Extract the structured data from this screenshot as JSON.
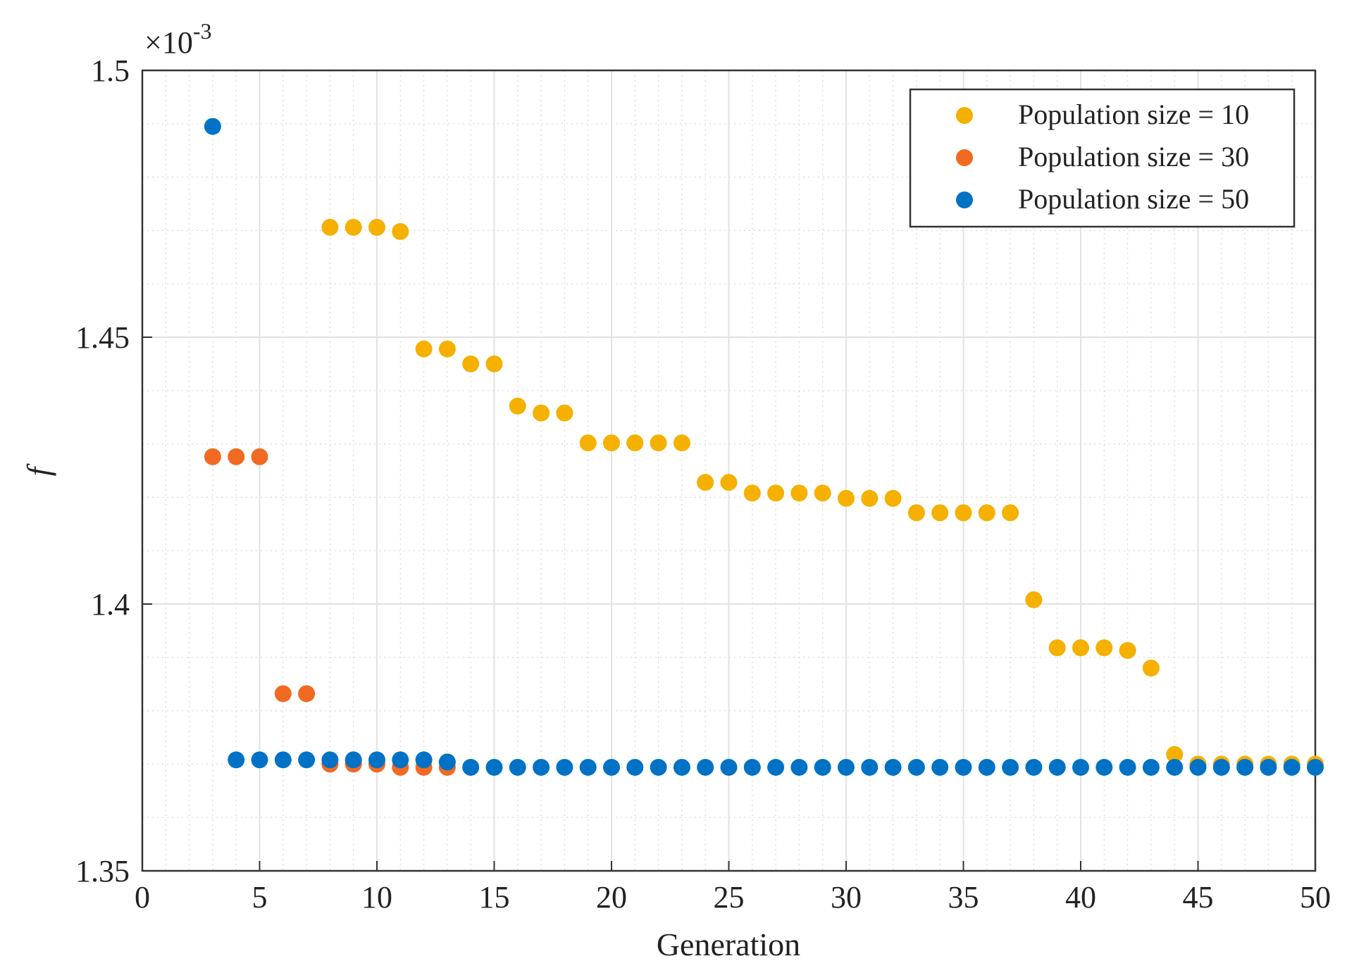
{
  "chart_data": {
    "type": "scatter",
    "title": "",
    "xlabel": "Generation",
    "ylabel": "f",
    "exponent_prefix": "×10",
    "exponent_power": "-3",
    "xlim": [
      0,
      50
    ],
    "ylim": [
      1.35,
      1.5
    ],
    "x_ticks": [
      0,
      5,
      10,
      15,
      20,
      25,
      30,
      35,
      40,
      45,
      50
    ],
    "x_tick_labels": [
      "0",
      "5",
      "10",
      "15",
      "20",
      "25",
      "30",
      "35",
      "40",
      "45",
      "50"
    ],
    "y_ticks": [
      1.35,
      1.4,
      1.45,
      1.5
    ],
    "y_tick_labels": [
      "1.35",
      "1.4",
      "1.45",
      "1.5"
    ],
    "grid": true,
    "minor_grid": true,
    "legend_position": "top-right",
    "series": [
      {
        "name": "Population size = 10",
        "color": "#F5B000",
        "x": [
          8,
          9,
          10,
          11,
          12,
          13,
          14,
          15,
          16,
          17,
          18,
          19,
          20,
          21,
          22,
          23,
          24,
          25,
          26,
          27,
          28,
          29,
          30,
          31,
          32,
          33,
          34,
          35,
          36,
          37,
          38,
          39,
          40,
          41,
          42,
          43,
          44,
          45,
          46,
          47,
          48,
          49,
          50
        ],
        "y": [
          1.4706,
          1.4706,
          1.4706,
          1.4698,
          1.4478,
          1.4478,
          1.445,
          1.445,
          1.4371,
          1.4358,
          1.4358,
          1.4302,
          1.4302,
          1.4302,
          1.4302,
          1.4302,
          1.4228,
          1.4228,
          1.4208,
          1.4208,
          1.4208,
          1.4208,
          1.4198,
          1.4198,
          1.4198,
          1.4171,
          1.4171,
          1.4171,
          1.4171,
          1.4171,
          1.4008,
          1.3918,
          1.3918,
          1.3918,
          1.3913,
          1.388,
          1.3718,
          1.37,
          1.37,
          1.37,
          1.37,
          1.37,
          1.37
        ]
      },
      {
        "name": "Population size = 30",
        "color": "#F06A22",
        "x": [
          3,
          4,
          5,
          6,
          7,
          8,
          9,
          10,
          11,
          12,
          13
        ],
        "y": [
          1.4276,
          1.4276,
          1.4276,
          1.3832,
          1.3832,
          1.37,
          1.37,
          1.37,
          1.3694,
          1.3694,
          1.3694
        ]
      },
      {
        "name": "Population size = 50",
        "color": "#0072C6",
        "x": [
          3,
          4,
          5,
          6,
          7,
          8,
          9,
          10,
          11,
          12,
          13,
          14,
          15,
          16,
          17,
          18,
          19,
          20,
          21,
          22,
          23,
          24,
          25,
          26,
          27,
          28,
          29,
          30,
          31,
          32,
          33,
          34,
          35,
          36,
          37,
          38,
          39,
          40,
          41,
          42,
          43,
          44,
          45,
          46,
          47,
          48,
          49,
          50
        ],
        "y": [
          1.4895,
          1.3708,
          1.3708,
          1.3708,
          1.3708,
          1.3708,
          1.3708,
          1.3708,
          1.3708,
          1.3708,
          1.3704,
          1.3694,
          1.3694,
          1.3694,
          1.3694,
          1.3694,
          1.3694,
          1.3694,
          1.3694,
          1.3694,
          1.3694,
          1.3694,
          1.3694,
          1.3694,
          1.3694,
          1.3694,
          1.3694,
          1.3694,
          1.3694,
          1.3694,
          1.3694,
          1.3694,
          1.3694,
          1.3694,
          1.3694,
          1.3694,
          1.3694,
          1.3694,
          1.3694,
          1.3694,
          1.3694,
          1.3694,
          1.3694,
          1.3694,
          1.3694,
          1.3694,
          1.3694,
          1.3694
        ]
      }
    ]
  }
}
